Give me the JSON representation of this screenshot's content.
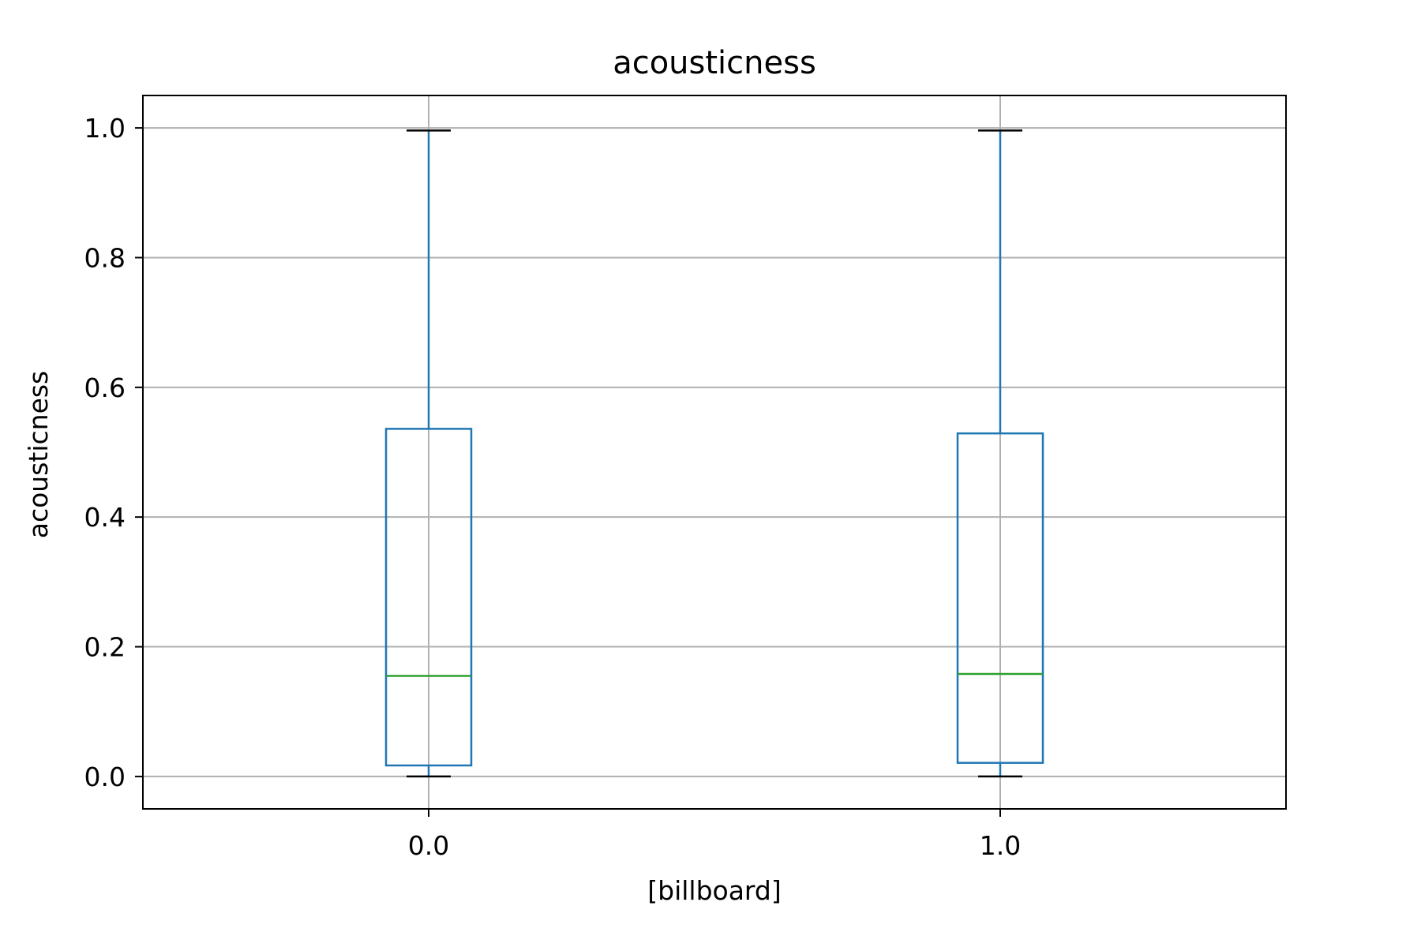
{
  "chart_data": {
    "type": "box",
    "title": "acousticness",
    "xlabel": "[billboard]",
    "ylabel": "acousticness",
    "ylim": [
      -0.05,
      1.05
    ],
    "yticks": [
      0.0,
      0.2,
      0.4,
      0.6,
      0.8,
      1.0
    ],
    "ytick_labels": [
      "0.0",
      "0.2",
      "0.4",
      "0.6",
      "0.8",
      "1.0"
    ],
    "categories": [
      "0.0",
      "1.0"
    ],
    "grid": true,
    "boxes": [
      {
        "category": "0.0",
        "whislo": 0.0,
        "q1": 0.017,
        "median": 0.155,
        "q3": 0.536,
        "whishi": 0.996
      },
      {
        "category": "1.0",
        "whislo": 0.0,
        "q1": 0.021,
        "median": 0.158,
        "q3": 0.529,
        "whishi": 0.996
      }
    ],
    "colors": {
      "box": "#1f77b4",
      "median": "#2ca02c",
      "caps": "#000000",
      "grid": "#b0b0b0",
      "frame": "#000000"
    }
  }
}
